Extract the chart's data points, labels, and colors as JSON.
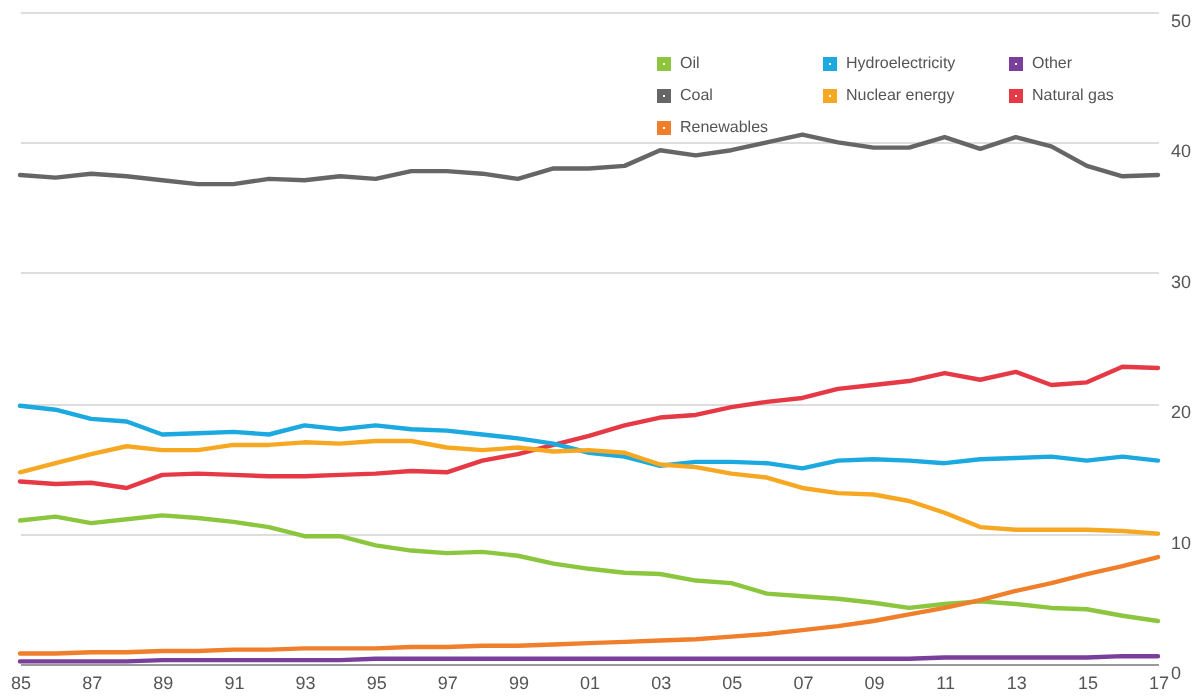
{
  "chart_data": {
    "type": "line",
    "x": [
      1985,
      1986,
      1987,
      1988,
      1989,
      1990,
      1991,
      1992,
      1993,
      1994,
      1995,
      1996,
      1997,
      1998,
      1999,
      2000,
      2001,
      2002,
      2003,
      2004,
      2005,
      2006,
      2007,
      2008,
      2009,
      2010,
      2011,
      2012,
      2013,
      2014,
      2015,
      2016,
      2017
    ],
    "xlim": [
      1985,
      2017
    ],
    "xticks": [
      {
        "value": 1985,
        "label": "85"
      },
      {
        "value": 1987,
        "label": "87"
      },
      {
        "value": 1989,
        "label": "89"
      },
      {
        "value": 1991,
        "label": "91"
      },
      {
        "value": 1993,
        "label": "93"
      },
      {
        "value": 1995,
        "label": "95"
      },
      {
        "value": 1997,
        "label": "97"
      },
      {
        "value": 1999,
        "label": "99"
      },
      {
        "value": 2001,
        "label": "01"
      },
      {
        "value": 2003,
        "label": "03"
      },
      {
        "value": 2005,
        "label": "05"
      },
      {
        "value": 2007,
        "label": "07"
      },
      {
        "value": 2009,
        "label": "09"
      },
      {
        "value": 2011,
        "label": "11"
      },
      {
        "value": 2013,
        "label": "13"
      },
      {
        "value": 2015,
        "label": "15"
      },
      {
        "value": 2017,
        "label": "17"
      }
    ],
    "ylim": [
      0,
      50
    ],
    "yticks": [
      0,
      10,
      20,
      30,
      40,
      50
    ],
    "grid": "y",
    "legend": "top right",
    "marker": "none",
    "line_style": "solid",
    "series": [
      {
        "name": "Oil",
        "color": "#8cc63f",
        "values": [
          11.0,
          11.3,
          10.8,
          11.1,
          11.4,
          11.2,
          10.9,
          10.5,
          9.8,
          9.8,
          9.1,
          8.7,
          8.5,
          8.6,
          8.3,
          7.7,
          7.3,
          7.0,
          6.9,
          6.4,
          6.2,
          5.4,
          5.2,
          5.0,
          4.7,
          4.3,
          4.6,
          4.8,
          4.6,
          4.3,
          4.2,
          3.7,
          3.3
        ]
      },
      {
        "name": "Coal",
        "color": "#666666",
        "values": [
          37.5,
          37.3,
          37.6,
          37.4,
          37.1,
          36.8,
          36.8,
          37.2,
          37.1,
          37.4,
          37.2,
          37.8,
          37.8,
          37.6,
          37.2,
          38.0,
          38.0,
          38.2,
          39.4,
          39.0,
          39.4,
          40.0,
          40.6,
          40.0,
          39.6,
          39.6,
          40.4,
          39.5,
          40.4,
          39.7,
          38.2,
          37.4,
          37.5
        ]
      },
      {
        "name": "Natural gas",
        "color": "#e63946",
        "values": [
          14.0,
          13.8,
          13.9,
          13.5,
          14.5,
          14.6,
          14.5,
          14.4,
          14.4,
          14.5,
          14.6,
          14.8,
          14.7,
          15.6,
          16.1,
          16.8,
          17.5,
          18.3,
          18.9,
          19.1,
          19.7,
          20.1,
          20.4,
          21.1,
          21.4,
          21.7,
          22.3,
          21.8,
          22.4,
          21.4,
          21.6,
          22.8,
          22.7
        ]
      },
      {
        "name": "Hydroelectricity",
        "color": "#1ba9e0",
        "values": [
          19.8,
          19.5,
          18.8,
          18.6,
          17.6,
          17.7,
          17.8,
          17.6,
          18.3,
          18.0,
          18.3,
          18.0,
          17.9,
          17.6,
          17.3,
          16.9,
          16.2,
          15.9,
          15.2,
          15.5,
          15.5,
          15.4,
          15.0,
          15.6,
          15.7,
          15.6,
          15.4,
          15.7,
          15.8,
          15.9,
          15.6,
          15.9,
          15.6
        ]
      },
      {
        "name": "Nuclear energy",
        "color": "#f7a823",
        "values": [
          14.7,
          15.4,
          16.1,
          16.7,
          16.4,
          16.4,
          16.8,
          16.8,
          17.0,
          16.9,
          17.1,
          17.1,
          16.6,
          16.4,
          16.6,
          16.3,
          16.4,
          16.2,
          15.3,
          15.1,
          14.6,
          14.3,
          13.5,
          13.1,
          13.0,
          12.5,
          11.6,
          10.5,
          10.3,
          10.3,
          10.3,
          10.2,
          10.0
        ]
      },
      {
        "name": "Renewables",
        "color": "#f07f2c",
        "values": [
          0.8,
          0.8,
          0.9,
          0.9,
          1.0,
          1.0,
          1.1,
          1.1,
          1.2,
          1.2,
          1.2,
          1.3,
          1.3,
          1.4,
          1.4,
          1.5,
          1.6,
          1.7,
          1.8,
          1.9,
          2.1,
          2.3,
          2.6,
          2.9,
          3.3,
          3.8,
          4.3,
          4.9,
          5.6,
          6.2,
          6.9,
          7.5,
          8.2
        ]
      },
      {
        "name": "Other",
        "color": "#7a3f9a",
        "values": [
          0.2,
          0.2,
          0.2,
          0.2,
          0.3,
          0.3,
          0.3,
          0.3,
          0.3,
          0.3,
          0.4,
          0.4,
          0.4,
          0.4,
          0.4,
          0.4,
          0.4,
          0.4,
          0.4,
          0.4,
          0.4,
          0.4,
          0.4,
          0.4,
          0.4,
          0.4,
          0.5,
          0.5,
          0.5,
          0.5,
          0.5,
          0.6,
          0.6
        ]
      }
    ]
  }
}
